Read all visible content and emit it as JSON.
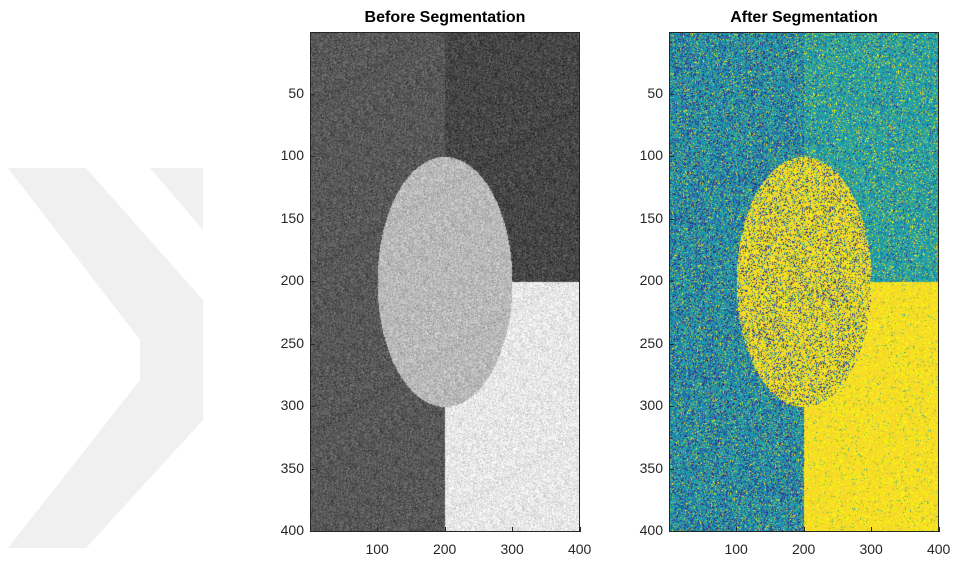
{
  "figure": {
    "left": {
      "title": "Before Segmentation",
      "colormap": "gray"
    },
    "right": {
      "title": "After Segmentation",
      "colormap": "parula"
    },
    "image_size": [
      400,
      400
    ],
    "x_ticks": [
      "100",
      "200",
      "300",
      "400"
    ],
    "y_ticks": [
      "50",
      "100",
      "150",
      "200",
      "250",
      "300",
      "350",
      "400"
    ]
  },
  "colors": {
    "parula_dark_blue": "#352a87",
    "parula_blue": "#1f78b4",
    "parula_teal": "#1fa3aa",
    "parula_green": "#6cbd5b",
    "parula_yellow": "#f5d82a",
    "parula_bright_yellow": "#f9fb0e",
    "watermark": "#efefef"
  }
}
